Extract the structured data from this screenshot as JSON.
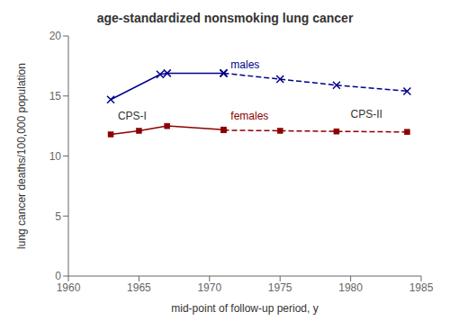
{
  "chart_data": {
    "type": "line",
    "title": "age-standardized nonsmoking lung cancer",
    "xlabel": "mid-point of follow-up period, y",
    "ylabel": "lung cancer deaths/100,000 population",
    "xlim": [
      1960,
      1985
    ],
    "ylim": [
      0,
      20
    ],
    "xticks": [
      1960,
      1965,
      1970,
      1975,
      1980,
      1985
    ],
    "yticks": [
      0,
      5,
      10,
      15,
      20
    ],
    "grid": false,
    "series": [
      {
        "color": "#00008B",
        "line_style": "solid",
        "marker": "x",
        "x": [
          1963,
          1966.5,
          1967,
          1971
        ],
        "values": [
          14.7,
          16.8,
          16.9,
          16.9
        ]
      },
      {
        "color": "#00008B",
        "line_style": "dashed",
        "marker": "x",
        "x": [
          1971,
          1975,
          1979,
          1984
        ],
        "values": [
          16.9,
          16.4,
          15.9,
          15.4
        ]
      },
      {
        "color": "#8B0000",
        "line_style": "solid",
        "marker": "square",
        "x": [
          1963,
          1965,
          1967,
          1971
        ],
        "values": [
          11.8,
          12.1,
          12.5,
          12.2
        ]
      },
      {
        "color": "#8B0000",
        "line_style": "dashed",
        "marker": "square",
        "x": [
          1971,
          1975,
          1979,
          1984
        ],
        "values": [
          12.15,
          12.1,
          12.05,
          12.0
        ]
      }
    ],
    "annotations": [
      {
        "text": "CPS-I",
        "x": 1963.5,
        "y": 13.3,
        "color": "#333333"
      },
      {
        "text": "CPS-II",
        "x": 1980.0,
        "y": 13.5,
        "color": "#333333"
      },
      {
        "text": "males",
        "x": 1971.5,
        "y": 17.6,
        "color": "#00008B"
      },
      {
        "text": "females",
        "x": 1971.5,
        "y": 13.35,
        "color": "#8B0000"
      }
    ]
  }
}
